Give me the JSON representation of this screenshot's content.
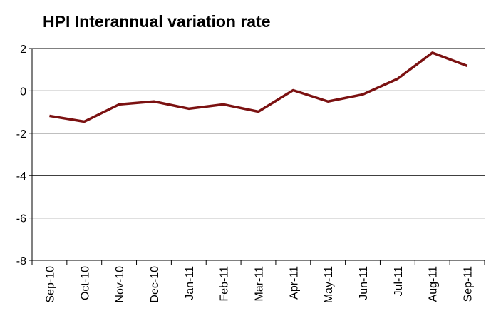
{
  "chart_data": {
    "type": "line",
    "title": "HPI Interannual variation rate",
    "categories": [
      "Sep-10",
      "Oct-10",
      "Nov-10",
      "Dec-10",
      "Jan-11",
      "Feb-11",
      "Mar-11",
      "Apr-11",
      "May-11",
      "Jun-11",
      "Jul-11",
      "Aug-11",
      "Sep-11"
    ],
    "series": [
      {
        "name": "HPI",
        "color": "#7b1111",
        "values": [
          -1.18,
          -1.45,
          -0.64,
          -0.5,
          -0.84,
          -0.64,
          -0.98,
          0.03,
          -0.5,
          -0.17,
          0.57,
          1.8,
          1.18
        ]
      }
    ],
    "ylim": [
      -8,
      2
    ],
    "yticks": [
      -8,
      -6,
      -4,
      -2,
      0,
      2
    ],
    "grid": true
  }
}
